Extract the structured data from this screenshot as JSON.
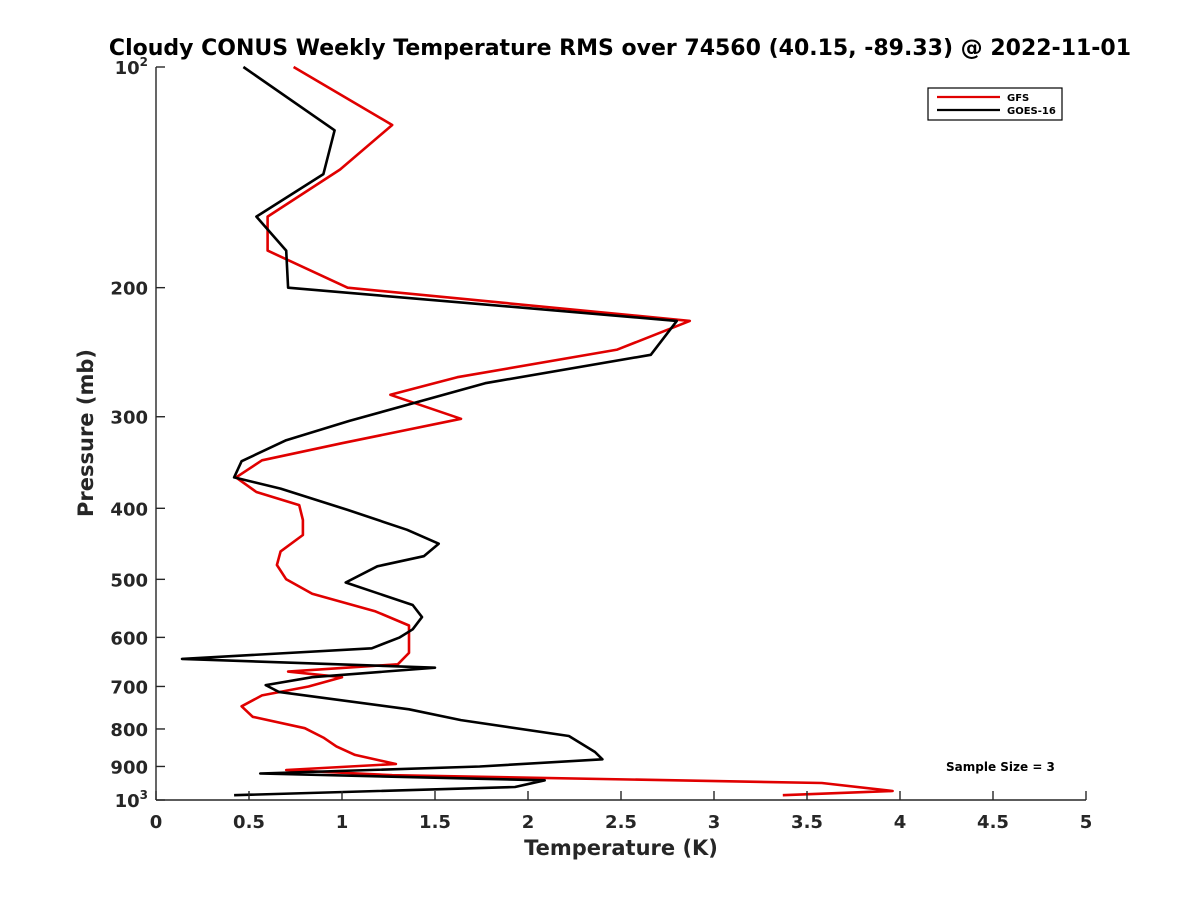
{
  "chart_data": {
    "type": "line",
    "title": "Cloudy CONUS Weekly Temperature RMS over 74560 (40.15, -89.33) @ 2022-11-01",
    "xlabel": "Temperature (K)",
    "ylabel": "Pressure (mb)",
    "xlim": [
      0,
      5
    ],
    "ylim": [
      100,
      1000
    ],
    "y_scale": "log",
    "y_reversed": true,
    "x_ticks": [
      "0",
      "0.5",
      "1",
      "1.5",
      "2",
      "2.5",
      "3",
      "3.5",
      "4",
      "4.5",
      "5"
    ],
    "y_ticks": [
      {
        "value": 100,
        "base": "10",
        "exp": "2"
      },
      {
        "value": 200,
        "label": "200"
      },
      {
        "value": 300,
        "label": "300"
      },
      {
        "value": 400,
        "label": "400"
      },
      {
        "value": 500,
        "label": "500"
      },
      {
        "value": 600,
        "label": "600"
      },
      {
        "value": 700,
        "label": "700"
      },
      {
        "value": 800,
        "label": "800"
      },
      {
        "value": 900,
        "label": "900"
      },
      {
        "value": 1000,
        "base": "10",
        "exp": "3"
      }
    ],
    "grid": false,
    "legend_position": "top-right",
    "series": [
      {
        "name": "GFS",
        "color": "#e00000",
        "x": [
          0.74,
          1.27,
          0.99,
          0.6,
          0.6,
          1.03,
          2.87,
          2.48,
          1.62,
          1.26,
          1.64,
          1.0,
          0.57,
          0.43,
          0.54,
          0.77,
          0.79,
          0.79,
          0.67,
          0.65,
          0.7,
          0.84,
          1.18,
          1.36,
          1.36,
          1.36,
          1.3,
          0.71,
          1.0,
          0.82,
          0.57,
          0.46,
          0.52,
          0.8,
          0.9,
          0.97,
          1.07,
          1.29,
          0.7,
          1.27,
          3.58,
          3.96,
          3.37
        ],
        "y": [
          100,
          120,
          138,
          160,
          178,
          200,
          222,
          243,
          265,
          280,
          302,
          326,
          344,
          363,
          380,
          396,
          415,
          435,
          458,
          478,
          500,
          523,
          553,
          578,
          603,
          630,
          653,
          668,
          680,
          700,
          720,
          745,
          770,
          798,
          822,
          845,
          868,
          893,
          910,
          925,
          948,
          972,
          985
        ]
      },
      {
        "name": "GOES-16",
        "color": "#000000",
        "x": [
          0.47,
          0.96,
          0.9,
          0.54,
          0.7,
          0.71,
          2.8,
          2.66,
          1.77,
          1.04,
          0.7,
          0.46,
          0.42,
          0.67,
          1.03,
          1.35,
          1.52,
          1.44,
          1.19,
          1.02,
          1.38,
          1.43,
          1.38,
          1.31,
          1.16,
          0.14,
          1.5,
          0.84,
          0.59,
          0.66,
          1.36,
          1.64,
          2.22,
          2.36,
          2.4,
          1.74,
          0.56,
          2.09,
          1.93,
          0.42
        ],
        "y": [
          100,
          122,
          140,
          160,
          178,
          200,
          222,
          247,
          270,
          304,
          323,
          345,
          363,
          376,
          402,
          428,
          447,
          465,
          480,
          505,
          542,
          563,
          585,
          600,
          621,
          642,
          660,
          680,
          697,
          712,
          752,
          778,
          818,
          860,
          880,
          900,
          920,
          940,
          960,
          985
        ]
      }
    ],
    "annotation": "Sample Size = 3"
  }
}
